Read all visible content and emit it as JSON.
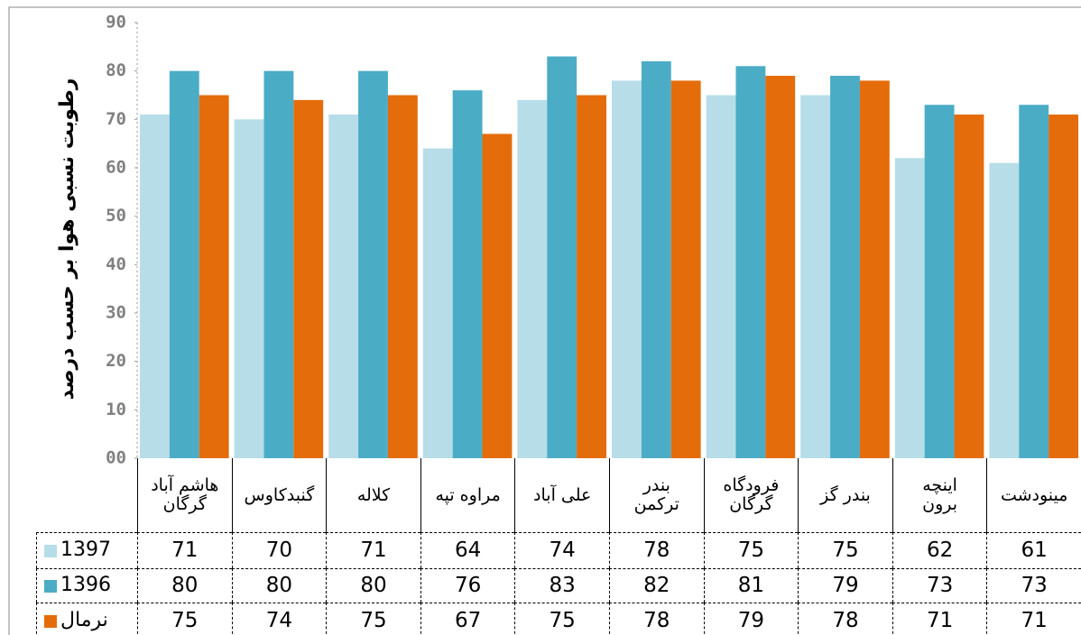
{
  "chart_data": {
    "type": "bar",
    "y_label": "رطوبت نسبی هوا بر حسب درصد",
    "categories": [
      "هاشم آباد\nگرگان",
      "گنبدکاوس",
      "کلاله",
      "مراوه تپه",
      "علی آباد",
      "بندر\nترکمن",
      "فرودگاه\nگرگان",
      "بندر گز",
      "اینچه\nبرون",
      "مینودشت"
    ],
    "series": [
      {
        "name": "1397",
        "color": "#b7dde8",
        "values": [
          71,
          70,
          71,
          64,
          74,
          78,
          75,
          75,
          62,
          61
        ]
      },
      {
        "name": "1396",
        "color": "#4bacc6",
        "values": [
          80,
          80,
          80,
          76,
          83,
          82,
          81,
          79,
          73,
          73
        ]
      },
      {
        "name": "نرمال",
        "color": "#e46c0a",
        "values": [
          75,
          74,
          75,
          67,
          75,
          78,
          79,
          78,
          71,
          71
        ]
      }
    ],
    "ylim": [
      0,
      90
    ],
    "yticks": [
      {
        "value": 0,
        "label": "00"
      },
      10,
      20,
      30,
      40,
      50,
      60,
      70,
      80,
      90
    ]
  }
}
